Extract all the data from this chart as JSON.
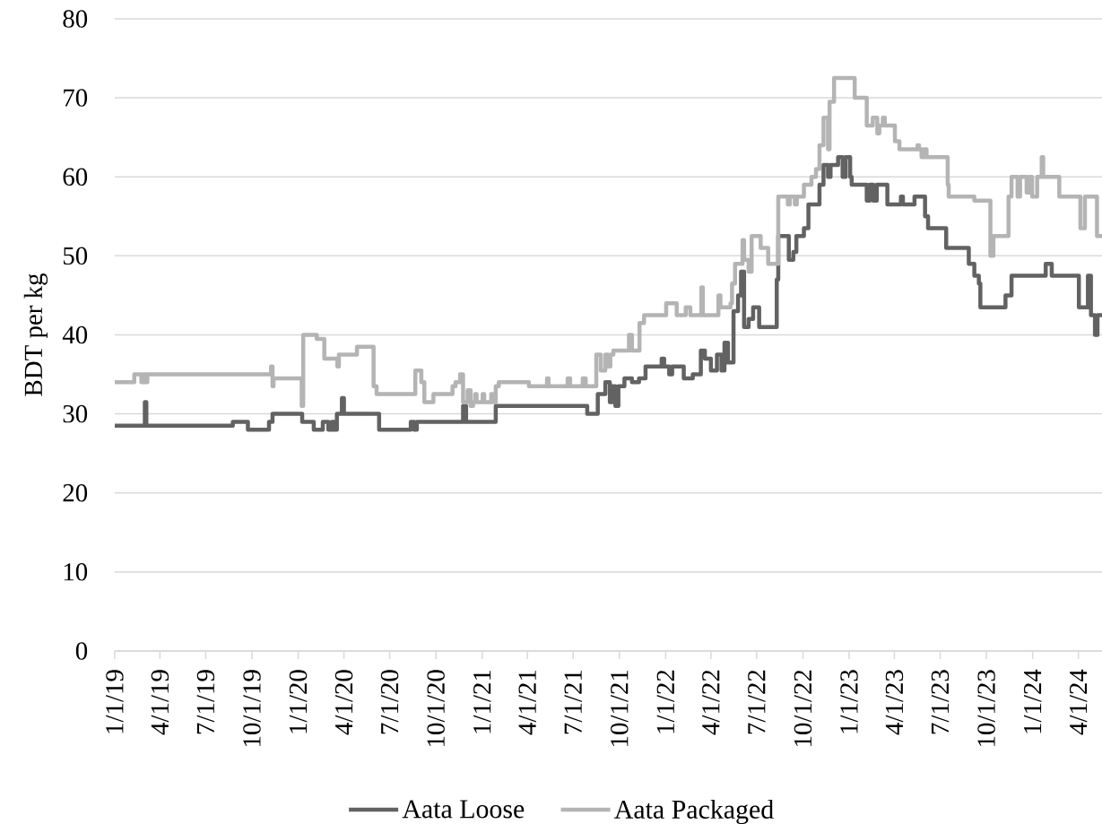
{
  "chart_data": {
    "type": "step",
    "ylabel": "BDT per kg",
    "series": [
      {
        "name": "Aata Loose",
        "color": "#626262",
        "x": [
          "2019-01-01",
          "2019-03-02",
          "2019-03-05",
          "2019-08-24",
          "2019-09-23",
          "2019-11-04",
          "2019-11-11",
          "2020-01-09",
          "2020-02-01",
          "2020-02-19",
          "2020-03-01",
          "2020-03-08",
          "2020-03-13",
          "2020-03-18",
          "2020-03-28",
          "2020-04-01",
          "2020-06-10",
          "2020-08-12",
          "2020-08-19",
          "2020-08-24",
          "2020-11-24",
          "2020-11-30",
          "2021-01-28",
          "2021-07-29",
          "2021-08-19",
          "2021-09-03",
          "2021-09-12",
          "2021-09-17",
          "2021-09-23",
          "2021-09-29",
          "2021-10-11",
          "2021-10-26",
          "2021-11-09",
          "2021-11-22",
          "2021-12-24",
          "2021-12-29",
          "2022-01-08",
          "2022-01-14",
          "2022-02-06",
          "2022-02-24",
          "2022-03-12",
          "2022-03-20",
          "2022-04-01",
          "2022-04-13",
          "2022-04-22",
          "2022-04-28",
          "2022-05-05",
          "2022-05-16",
          "2022-05-25",
          "2022-05-31",
          "2022-06-06",
          "2022-06-15",
          "2022-06-24",
          "2022-07-06",
          "2022-08-10",
          "2022-08-13",
          "2022-09-03",
          "2022-09-12",
          "2022-09-18",
          "2022-10-03",
          "2022-10-12",
          "2022-11-03",
          "2022-11-11",
          "2022-11-20",
          "2022-11-25",
          "2022-12-10",
          "2022-12-19",
          "2022-12-25",
          "2023-01-03",
          "2023-01-06",
          "2023-02-05",
          "2023-02-11",
          "2023-02-18",
          "2023-02-25",
          "2023-03-18",
          "2023-04-14",
          "2023-04-18",
          "2023-05-11",
          "2023-06-01",
          "2023-06-07",
          "2023-07-13",
          "2023-08-27",
          "2023-09-07",
          "2023-09-16",
          "2023-09-19",
          "2023-11-08",
          "2023-11-20",
          "2024-01-27",
          "2024-02-08",
          "2024-04-02",
          "2024-04-20",
          "2024-04-26",
          "2024-05-04",
          "2024-05-09",
          "2024-05-18"
        ],
        "values": [
          28.5,
          31.5,
          28.5,
          29,
          28,
          29,
          30,
          29,
          28,
          29,
          28,
          29,
          28,
          30,
          32,
          30,
          28,
          29,
          28,
          29,
          31,
          29,
          31,
          30,
          32.5,
          34,
          31.5,
          33.5,
          31,
          33.5,
          34.5,
          34,
          34.5,
          36,
          37,
          36,
          35,
          36,
          34.5,
          35,
          38,
          37,
          35.5,
          37.5,
          35.5,
          39,
          36.5,
          43,
          45,
          48,
          41,
          42,
          43.5,
          41,
          47,
          52.5,
          49.5,
          50.5,
          52.5,
          53.5,
          56.5,
          59,
          61.5,
          60,
          61.5,
          62.5,
          60,
          62.5,
          60,
          59,
          57,
          59,
          57,
          59,
          56.5,
          57.5,
          56.5,
          57.5,
          55,
          53.5,
          51,
          49,
          47.5,
          46.5,
          43.5,
          45,
          47.5,
          49,
          47.5,
          43.5,
          47.5,
          42.5,
          40,
          42.5,
          42.5
        ]
      },
      {
        "name": "Aata Packaged",
        "color": "#b4b4b4",
        "x": [
          "2019-01-01",
          "2019-02-09",
          "2019-02-23",
          "2019-02-27",
          "2019-03-04",
          "2019-03-07",
          "2019-11-08",
          "2019-11-11",
          "2019-11-13",
          "2020-01-08",
          "2020-01-11",
          "2020-02-07",
          "2020-02-22",
          "2020-03-19",
          "2020-03-22",
          "2020-04-27",
          "2020-05-30",
          "2020-06-05",
          "2020-08-21",
          "2020-09-02",
          "2020-09-08",
          "2020-09-26",
          "2020-11-03",
          "2020-11-09",
          "2020-11-18",
          "2020-11-24",
          "2020-12-03",
          "2020-12-09",
          "2020-12-14",
          "2020-12-18",
          "2020-12-21",
          "2021-01-02",
          "2021-01-05",
          "2021-01-19",
          "2021-01-22",
          "2021-01-28",
          "2021-02-03",
          "2021-04-04",
          "2021-05-10",
          "2021-05-13",
          "2021-06-20",
          "2021-06-25",
          "2021-07-20",
          "2021-07-26",
          "2021-08-16",
          "2021-08-25",
          "2021-09-03",
          "2021-09-08",
          "2021-09-13",
          "2021-09-19",
          "2021-10-20",
          "2021-10-26",
          "2021-11-10",
          "2021-11-19",
          "2022-01-02",
          "2022-01-23",
          "2022-02-10",
          "2022-02-19",
          "2022-03-13",
          "2022-03-16",
          "2022-04-16",
          "2022-04-20",
          "2022-05-10",
          "2022-05-13",
          "2022-05-19",
          "2022-06-03",
          "2022-06-06",
          "2022-06-15",
          "2022-06-21",
          "2022-07-09",
          "2022-07-24",
          "2022-08-13",
          "2022-09-01",
          "2022-09-05",
          "2022-09-15",
          "2022-09-19",
          "2022-10-03",
          "2022-10-18",
          "2022-10-27",
          "2022-11-03",
          "2022-11-11",
          "2022-11-20",
          "2022-11-23",
          "2022-12-02",
          "2023-01-12",
          "2023-02-05",
          "2023-02-17",
          "2023-02-26",
          "2023-03-02",
          "2023-03-09",
          "2023-03-13",
          "2023-04-02",
          "2023-04-11",
          "2023-05-17",
          "2023-05-20",
          "2023-05-25",
          "2023-05-29",
          "2023-06-04",
          "2023-07-16",
          "2023-07-18",
          "2023-09-07",
          "2023-10-09",
          "2023-10-15",
          "2023-11-14",
          "2023-11-20",
          "2023-12-02",
          "2023-12-07",
          "2023-12-20",
          "2023-12-25",
          "2023-12-31",
          "2024-01-10",
          "2024-01-19",
          "2024-01-22",
          "2024-02-23",
          "2024-04-05",
          "2024-04-14",
          "2024-05-08",
          "2024-05-18"
        ],
        "values": [
          34,
          35,
          34,
          35,
          34,
          35,
          36,
          33.5,
          34.5,
          31,
          40,
          39.5,
          37,
          36,
          37.5,
          38.5,
          33.5,
          32.5,
          35.5,
          34,
          31.5,
          32.5,
          33.5,
          34,
          35,
          31.5,
          33,
          31,
          31.5,
          32.5,
          31.5,
          32.5,
          31.5,
          32.5,
          31.5,
          33.5,
          34,
          33.5,
          34.5,
          33.5,
          34.5,
          33.5,
          34.5,
          33.5,
          37.5,
          35.5,
          37.5,
          36,
          37.5,
          38,
          40,
          38,
          41.5,
          42.5,
          44,
          42.5,
          43.5,
          42.5,
          46,
          42.5,
          45,
          43.5,
          44,
          46.5,
          49,
          52,
          49.5,
          48,
          52.5,
          51,
          49,
          57.5,
          56.5,
          57.5,
          56.5,
          57.5,
          59,
          60,
          61,
          64,
          67.5,
          63.5,
          69.5,
          72.5,
          70,
          66.5,
          67.5,
          65.5,
          66.5,
          67.5,
          66.5,
          64.5,
          63.5,
          64,
          63.5,
          62.5,
          63.5,
          62.5,
          59,
          57.5,
          57,
          50,
          52.5,
          57.5,
          60,
          57.5,
          60,
          58,
          60,
          57.5,
          60,
          62.5,
          60,
          57.5,
          53.5,
          57.5,
          52.5,
          52.5
        ]
      }
    ],
    "xlim": [
      "2019-01-01",
      "2024-05-18"
    ],
    "xticks": [
      {
        "value": "2019-01-01",
        "label": "1/1/19"
      },
      {
        "value": "2019-04-01",
        "label": "4/1/19"
      },
      {
        "value": "2019-07-01",
        "label": "7/1/19"
      },
      {
        "value": "2019-10-01",
        "label": "10/1/19"
      },
      {
        "value": "2020-01-01",
        "label": "1/1/20"
      },
      {
        "value": "2020-04-01",
        "label": "4/1/20"
      },
      {
        "value": "2020-07-01",
        "label": "7/1/20"
      },
      {
        "value": "2020-10-01",
        "label": "10/1/20"
      },
      {
        "value": "2021-01-01",
        "label": "1/1/21"
      },
      {
        "value": "2021-04-01",
        "label": "4/1/21"
      },
      {
        "value": "2021-07-01",
        "label": "7/1/21"
      },
      {
        "value": "2021-10-01",
        "label": "10/1/21"
      },
      {
        "value": "2022-01-01",
        "label": "1/1/22"
      },
      {
        "value": "2022-04-01",
        "label": "4/1/22"
      },
      {
        "value": "2022-07-01",
        "label": "7/1/22"
      },
      {
        "value": "2022-10-01",
        "label": "10/1/22"
      },
      {
        "value": "2023-01-01",
        "label": "1/1/23"
      },
      {
        "value": "2023-04-01",
        "label": "4/1/23"
      },
      {
        "value": "2023-07-01",
        "label": "7/1/23"
      },
      {
        "value": "2023-10-01",
        "label": "10/1/23"
      },
      {
        "value": "2024-01-01",
        "label": "1/1/24"
      },
      {
        "value": "2024-04-01",
        "label": "4/1/24"
      }
    ],
    "ylim": [
      0,
      80
    ],
    "yticks": [
      0,
      10,
      20,
      30,
      40,
      50,
      60,
      70,
      80
    ],
    "grid": "y",
    "legend": "bottom"
  }
}
